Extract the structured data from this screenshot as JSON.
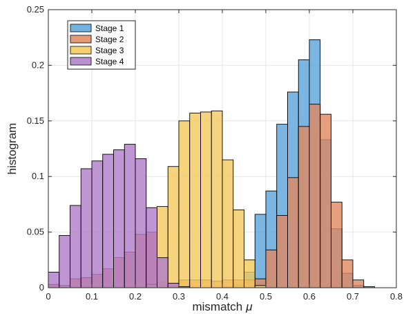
{
  "chart_data": {
    "type": "bar",
    "subtype": "overlapping-histogram",
    "xlabel": "mismatch",
    "xlabel_symbol": "μ",
    "ylabel": "histogram",
    "xlim": [
      0,
      0.8
    ],
    "ylim": [
      0,
      0.25
    ],
    "xticks": [
      "0",
      "0.1",
      "0.2",
      "0.3",
      "0.4",
      "0.5",
      "0.6",
      "0.7",
      "0.8"
    ],
    "yticks": [
      "0",
      "0.05",
      "0.1",
      "0.15",
      "0.2",
      "0.25"
    ],
    "grid": true,
    "legend_position": "top-left",
    "bin_width": 0.025,
    "series": [
      {
        "name": "Stage 1",
        "color": "#5aa3d9",
        "bins": [
          [
            0.325,
            0.0
          ],
          [
            0.35,
            0.0
          ],
          [
            0.375,
            0.0
          ],
          [
            0.4,
            0.001
          ],
          [
            0.425,
            0.003
          ],
          [
            0.45,
            0.014
          ],
          [
            0.475,
            0.066
          ],
          [
            0.5,
            0.087
          ],
          [
            0.525,
            0.147
          ],
          [
            0.55,
            0.176
          ],
          [
            0.575,
            0.205
          ],
          [
            0.6,
            0.223
          ],
          [
            0.625,
            0.133
          ],
          [
            0.65,
            0.053
          ],
          [
            0.675,
            0.013
          ],
          [
            0.7,
            0.002
          ],
          [
            0.725,
            0.001
          ]
        ]
      },
      {
        "name": "Stage 2",
        "color": "#e08860",
        "bins": [
          [
            0.0,
            0.003
          ],
          [
            0.025,
            0.002
          ],
          [
            0.05,
            0.008
          ],
          [
            0.075,
            0.009
          ],
          [
            0.1,
            0.012
          ],
          [
            0.125,
            0.017
          ],
          [
            0.15,
            0.027
          ],
          [
            0.175,
            0.032
          ],
          [
            0.2,
            0.048
          ],
          [
            0.225,
            0.05
          ],
          [
            0.25,
            0.005
          ],
          [
            0.275,
            0.004
          ],
          [
            0.3,
            0.007
          ],
          [
            0.325,
            0.007
          ],
          [
            0.35,
            0.007
          ],
          [
            0.375,
            0.006
          ],
          [
            0.4,
            0.007
          ],
          [
            0.425,
            0.007
          ],
          [
            0.45,
            0.007
          ],
          [
            0.475,
            0.008
          ],
          [
            0.5,
            0.034
          ],
          [
            0.525,
            0.065
          ],
          [
            0.55,
            0.099
          ],
          [
            0.575,
            0.145
          ],
          [
            0.6,
            0.165
          ],
          [
            0.625,
            0.156
          ],
          [
            0.65,
            0.077
          ],
          [
            0.675,
            0.025
          ],
          [
            0.7,
            0.007
          ]
        ]
      },
      {
        "name": "Stage 3",
        "color": "#f4c95c",
        "bins": [
          [
            0.2,
            0.0
          ],
          [
            0.225,
            0.003
          ],
          [
            0.25,
            0.073
          ],
          [
            0.275,
            0.109
          ],
          [
            0.3,
            0.15
          ],
          [
            0.325,
            0.157
          ],
          [
            0.35,
            0.158
          ],
          [
            0.375,
            0.159
          ],
          [
            0.4,
            0.115
          ],
          [
            0.425,
            0.07
          ],
          [
            0.45,
            0.025
          ],
          [
            0.475,
            0.002
          ]
        ]
      },
      {
        "name": "Stage 4",
        "color": "#b07bc8",
        "bins": [
          [
            0.0,
            0.014
          ],
          [
            0.025,
            0.047
          ],
          [
            0.05,
            0.074
          ],
          [
            0.075,
            0.107
          ],
          [
            0.1,
            0.114
          ],
          [
            0.125,
            0.12
          ],
          [
            0.15,
            0.124
          ],
          [
            0.175,
            0.129
          ],
          [
            0.2,
            0.116
          ],
          [
            0.225,
            0.072
          ],
          [
            0.25,
            0.027
          ],
          [
            0.275,
            0.004
          ],
          [
            0.3,
            0.001
          ]
        ]
      }
    ]
  }
}
